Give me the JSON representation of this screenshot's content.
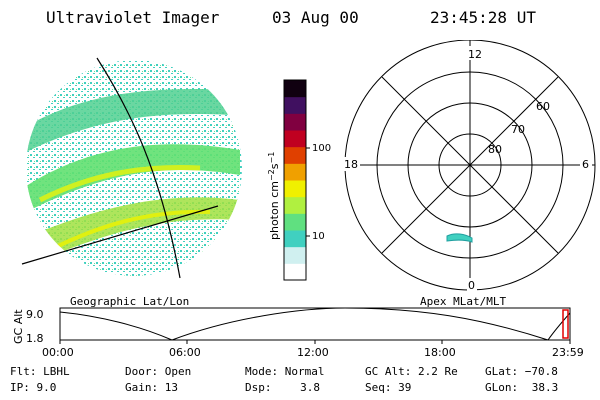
{
  "header": {
    "instrument": "Ultraviolet Imager",
    "date": "03 Aug 00",
    "time": "23:45:28 UT"
  },
  "image_panel": {
    "label": "Geographic Lat/Lon"
  },
  "colorbar": {
    "unit_label": "photon cm",
    "unit_sup1": "−2",
    "unit_mid": "s",
    "unit_sup2": "−1",
    "tick_100": "100",
    "tick_10": "10",
    "colors": [
      "#ffffff",
      "#d0f0f0",
      "#40d0c0",
      "#60e080",
      "#b0f040",
      "#f0f000",
      "#f0a000",
      "#e04000",
      "#c00020",
      "#800040",
      "#401060",
      "#100010"
    ]
  },
  "polar": {
    "label": "Apex MLat/MLT",
    "mlt_12": "12",
    "mlt_18": "18",
    "mlt_6": "6",
    "mlt_0": "0",
    "lat_60": "60",
    "lat_70": "70",
    "lat_80": "80",
    "spot_color": "#40d0c0"
  },
  "altitude": {
    "axis_label": "GC Alt",
    "y_top": "9.0",
    "y_bottom": "1.8",
    "times": [
      "00:00",
      "06:00",
      "12:00",
      "18:00",
      "23:59"
    ]
  },
  "info": {
    "flt_label": "Flt:",
    "flt_value": "LBHL",
    "ip_label": "IP:",
    "ip_value": "9.0",
    "door_label": "Door:",
    "door_value": "Open",
    "gain_label": "Gain:",
    "gain_value": "13",
    "mode_label": "Mode:",
    "mode_value": "Normal",
    "dsp_label": "Dsp:",
    "dsp_value": "3.8",
    "gcalt_label": "GC Alt:",
    "gcalt_value": "2.2 Re",
    "seq_label": "Seq:",
    "seq_value": "39",
    "glat_label": "GLat:",
    "glat_value": "−70.8",
    "glon_label": "GLon:",
    "glon_value": "38.3"
  }
}
